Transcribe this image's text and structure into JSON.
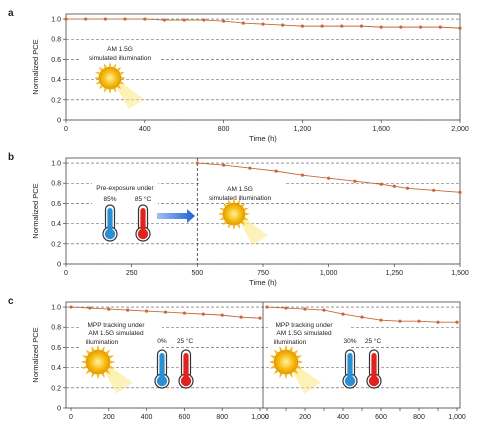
{
  "colors": {
    "series": "#c8683a",
    "accent_blue": "#1f62d0",
    "thermo_blue": "#2b8fd6",
    "thermo_red": "#e0231c",
    "sun": "#f5b400"
  },
  "icons": [
    "sun-icon",
    "thermometer-blue-icon",
    "thermometer-red-icon",
    "right-arrow-icon"
  ],
  "chart_data": [
    {
      "panel": "a",
      "type": "line",
      "ylabel": "Normalized PCE",
      "xlabel": "Time (h)",
      "xlim": [
        0,
        2000
      ],
      "ylim": [
        0,
        1.05
      ],
      "xticks": [
        0,
        400,
        800,
        1200,
        1600,
        2000
      ],
      "xtick_labels": [
        "0",
        "400",
        "800",
        "1,200",
        "1,600",
        "2,000"
      ],
      "yticks": [
        0,
        0.2,
        0.4,
        0.6,
        0.8,
        1.0
      ],
      "ytick_labels": [
        "0",
        "0.2",
        "0.4",
        "0.6",
        "0.8",
        "1.0"
      ],
      "grid": "dashed horizontal",
      "annotations": [
        "AM 1.5G",
        "simulated illumination"
      ],
      "x": [
        0,
        100,
        200,
        300,
        400,
        500,
        600,
        700,
        800,
        900,
        1000,
        1100,
        1200,
        1300,
        1400,
        1500,
        1600,
        1700,
        1800,
        1900,
        2000
      ],
      "y": [
        1.0,
        1.0,
        1.0,
        1.0,
        1.0,
        0.99,
        0.99,
        0.99,
        0.98,
        0.96,
        0.95,
        0.94,
        0.93,
        0.93,
        0.93,
        0.93,
        0.92,
        0.92,
        0.92,
        0.92,
        0.91
      ]
    },
    {
      "panel": "b",
      "type": "line",
      "ylabel": "Normalized PCE",
      "xlabel": "Time (h)",
      "xlim": [
        0,
        1500
      ],
      "ylim": [
        0,
        1.05
      ],
      "xticks": [
        0,
        250,
        500,
        750,
        1000,
        1250,
        1500
      ],
      "xtick_labels": [
        "0",
        "250",
        "500",
        "750",
        "1,000",
        "1,250",
        "1,500"
      ],
      "yticks": [
        0,
        0.2,
        0.4,
        0.6,
        0.8,
        1.0
      ],
      "ytick_labels": [
        "0",
        "0.2",
        "0.4",
        "0.6",
        "0.8",
        "1.0"
      ],
      "grid": "dashed horizontal",
      "annotations": [
        "Pre-exposure under",
        "85%",
        "85 °C",
        "AM 1.5G",
        "simulated illumination"
      ],
      "divider_x": 500,
      "x": [
        500,
        600,
        700,
        800,
        900,
        1000,
        1100,
        1200,
        1250,
        1300,
        1400,
        1500
      ],
      "y": [
        1.0,
        0.98,
        0.95,
        0.92,
        0.88,
        0.85,
        0.82,
        0.79,
        0.77,
        0.75,
        0.73,
        0.71
      ]
    },
    {
      "panel": "c",
      "type": "line",
      "ylabel": "Normalized PCE",
      "xlabel": "",
      "ylim": [
        0,
        1.05
      ],
      "yticks": [
        0,
        0.2,
        0.4,
        0.6,
        0.8,
        1.0
      ],
      "ytick_labels": [
        "0",
        "0.2",
        "0.4",
        "0.6",
        "0.8",
        "1.0"
      ],
      "grid": "dashed horizontal",
      "subplots": [
        {
          "xlim": [
            0,
            1000
          ],
          "xticks": [
            0,
            200,
            400,
            600,
            800,
            1000
          ],
          "xtick_labels": [
            "0",
            "200",
            "400",
            "600",
            "800",
            "1,000"
          ],
          "annotations": [
            "MPP tracking under",
            "AM 1.5G simulated",
            "illumination",
            "0%",
            "25 °C"
          ],
          "x": [
            0,
            100,
            200,
            300,
            400,
            500,
            600,
            700,
            800,
            900,
            1000
          ],
          "y": [
            1.0,
            0.99,
            0.98,
            0.97,
            0.96,
            0.95,
            0.94,
            0.93,
            0.92,
            0.9,
            0.89
          ]
        },
        {
          "xlim": [
            0,
            1000
          ],
          "xticks": [
            0,
            100,
            200,
            300,
            400,
            500,
            600,
            700,
            800,
            900,
            1000
          ],
          "xtick_labels": [
            "0",
            "200",
            "400",
            "600",
            "800",
            "1,000"
          ],
          "xtick_label_positions": [
            0,
            200,
            400,
            600,
            800,
            1000
          ],
          "annotations": [
            "MPP tracking under",
            "AM 1.5G simulated",
            "illumination",
            "30%",
            "25 °C"
          ],
          "x": [
            0,
            100,
            200,
            300,
            400,
            500,
            600,
            700,
            800,
            900,
            1000
          ],
          "y": [
            1.0,
            0.99,
            0.98,
            0.97,
            0.93,
            0.9,
            0.87,
            0.86,
            0.86,
            0.85,
            0.85
          ]
        }
      ]
    }
  ]
}
